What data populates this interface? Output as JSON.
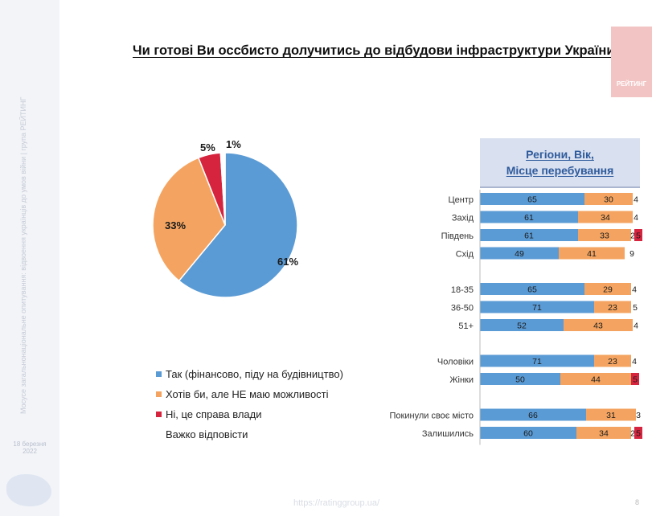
{
  "slide": {
    "title": "Чи готові Ви оссбисто долучитись до відбудови інфраструктури України?",
    "logo_text": "РЕЙТИНГ",
    "sidebar_text": "Мосусе загальнонаціональне опитування: відвоення українців до умов війни | група РЕЙТИНГ",
    "sidebar_date": "18 березня 2022",
    "footer_url": "https://ratinggroup.ua/",
    "page_number": "8"
  },
  "colors": {
    "yes": "#5b9bd5",
    "want": "#f4a460",
    "no": "#d6243f",
    "hard": "#ffffff"
  },
  "chart_data": [
    {
      "type": "pie",
      "slices": [
        {
          "label": "Так (фінансово, піду на будівництво)",
          "value": 61,
          "data_label": "61%"
        },
        {
          "label": "Хотів би, але НЕ маю можливості",
          "value": 33,
          "data_label": "33%"
        },
        {
          "label": "Ні, це справа влади",
          "value": 5,
          "data_label": "5%"
        },
        {
          "label": "Важко відповісти",
          "value": 1,
          "data_label": "1%"
        }
      ]
    },
    {
      "type": "bar",
      "orientation": "horizontal",
      "stacked": true,
      "title_lines": [
        "Регіони, Вік,",
        "Місце перебування"
      ],
      "xlim": [
        0,
        100
      ],
      "groups": [
        {
          "rows": [
            {
              "label": "Центр",
              "values": [
                65,
                30,
                4
              ]
            },
            {
              "label": "Захід",
              "values": [
                61,
                34,
                4
              ]
            },
            {
              "label": "Південь",
              "values": [
                61,
                33,
                2,
                5
              ]
            },
            {
              "label": "Схід",
              "values": [
                49,
                41,
                9
              ]
            }
          ]
        },
        {
          "rows": [
            {
              "label": "18-35",
              "values": [
                65,
                29,
                4
              ]
            },
            {
              "label": "36-50",
              "values": [
                71,
                23,
                5
              ]
            },
            {
              "label": "51+",
              "values": [
                52,
                43,
                4
              ]
            }
          ]
        },
        {
          "rows": [
            {
              "label": "Чоловіки",
              "values": [
                71,
                23,
                4
              ]
            },
            {
              "label": "Жінки",
              "values": [
                50,
                44,
                0,
                5
              ]
            }
          ]
        },
        {
          "rows": [
            {
              "label": "Покинули своє місто",
              "values": [
                66,
                31,
                3
              ]
            },
            {
              "label": "Залишились",
              "values": [
                60,
                34,
                2,
                5
              ]
            }
          ]
        }
      ]
    }
  ]
}
